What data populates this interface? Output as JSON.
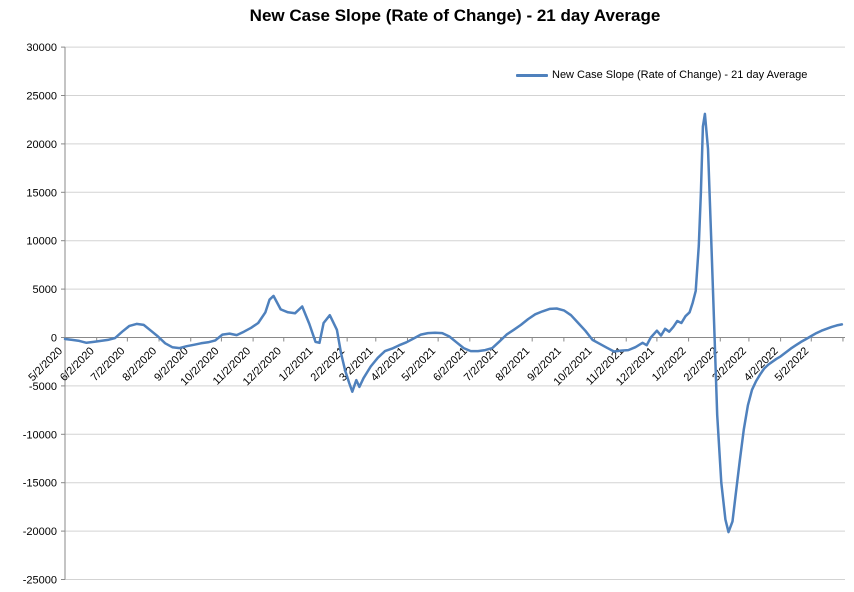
{
  "title": "New Case Slope (Rate of Change) - 21 day Average",
  "legend": {
    "label": "New Case Slope (Rate of Change) - 21 day Average",
    "line_color": "#4F81BD"
  },
  "colors": {
    "series": "#4F81BD",
    "gridline": "#D3D3D3",
    "axis": "#898989",
    "text": "#000000"
  },
  "chart_data": {
    "type": "line",
    "title": "New Case Slope (Rate of Change) - 21 day Average",
    "xlabel": "",
    "ylabel": "",
    "ylim": [
      -25000,
      30000
    ],
    "ytick_step": 5000,
    "grid": "horizontal",
    "legend_position": "top-right-inside",
    "y_tick_labels": [
      "30000",
      "25000",
      "20000",
      "15000",
      "10000",
      "5000",
      "0",
      "-5000",
      "-10000",
      "-15000",
      "-20000",
      "-25000"
    ],
    "x_tick_labels": [
      "5/2/2020",
      "6/2/2020",
      "7/2/2020",
      "8/2/2020",
      "9/2/2020",
      "10/2/2020",
      "11/2/2020",
      "12/2/2020",
      "1/2/2021",
      "2/2/2021",
      "3/2/2021",
      "4/2/2021",
      "5/2/2021",
      "6/2/2021",
      "7/2/2021",
      "8/2/2021",
      "9/2/2021",
      "10/2/2021",
      "11/2/2021",
      "12/2/2021",
      "1/2/2022",
      "2/2/2022",
      "3/2/2022",
      "4/2/2022",
      "5/2/2022"
    ],
    "series": [
      {
        "name": "New Case Slope (Rate of Change) - 21 day Average",
        "color": "#4F81BD",
        "points": [
          [
            "2020-05-02",
            -150
          ],
          [
            "2020-05-09",
            -250
          ],
          [
            "2020-05-16",
            -350
          ],
          [
            "2020-05-23",
            -550
          ],
          [
            "2020-05-30",
            -450
          ],
          [
            "2020-06-06",
            -350
          ],
          [
            "2020-06-13",
            -250
          ],
          [
            "2020-06-20",
            -50
          ],
          [
            "2020-06-27",
            600
          ],
          [
            "2020-07-04",
            1200
          ],
          [
            "2020-07-11",
            1400
          ],
          [
            "2020-07-18",
            1300
          ],
          [
            "2020-07-25",
            700
          ],
          [
            "2020-08-01",
            100
          ],
          [
            "2020-08-08",
            -600
          ],
          [
            "2020-08-15",
            -1000
          ],
          [
            "2020-08-22",
            -1100
          ],
          [
            "2020-08-29",
            -900
          ],
          [
            "2020-09-05",
            -750
          ],
          [
            "2020-09-12",
            -600
          ],
          [
            "2020-09-19",
            -500
          ],
          [
            "2020-09-26",
            -300
          ],
          [
            "2020-10-03",
            300
          ],
          [
            "2020-10-10",
            400
          ],
          [
            "2020-10-17",
            250
          ],
          [
            "2020-10-24",
            600
          ],
          [
            "2020-10-31",
            1000
          ],
          [
            "2020-11-07",
            1500
          ],
          [
            "2020-11-14",
            2600
          ],
          [
            "2020-11-18",
            3900
          ],
          [
            "2020-11-22",
            4300
          ],
          [
            "2020-11-29",
            2900
          ],
          [
            "2020-12-06",
            2600
          ],
          [
            "2020-12-13",
            2500
          ],
          [
            "2020-12-20",
            3200
          ],
          [
            "2020-12-27",
            1400
          ],
          [
            "2021-01-02",
            -450
          ],
          [
            "2021-01-06",
            -550
          ],
          [
            "2021-01-10",
            1500
          ],
          [
            "2021-01-16",
            2300
          ],
          [
            "2021-01-23",
            800
          ],
          [
            "2021-01-27",
            -1600
          ],
          [
            "2021-01-31",
            -3400
          ],
          [
            "2021-02-04",
            -4700
          ],
          [
            "2021-02-07",
            -5600
          ],
          [
            "2021-02-11",
            -4400
          ],
          [
            "2021-02-14",
            -5100
          ],
          [
            "2021-02-18",
            -4200
          ],
          [
            "2021-02-25",
            -3000
          ],
          [
            "2021-03-04",
            -2100
          ],
          [
            "2021-03-11",
            -1400
          ],
          [
            "2021-03-18",
            -1150
          ],
          [
            "2021-03-25",
            -800
          ],
          [
            "2021-04-01",
            -500
          ],
          [
            "2021-04-08",
            -100
          ],
          [
            "2021-04-15",
            300
          ],
          [
            "2021-04-22",
            450
          ],
          [
            "2021-04-29",
            500
          ],
          [
            "2021-05-06",
            450
          ],
          [
            "2021-05-13",
            100
          ],
          [
            "2021-05-20",
            -500
          ],
          [
            "2021-05-27",
            -1100
          ],
          [
            "2021-06-03",
            -1400
          ],
          [
            "2021-06-10",
            -1400
          ],
          [
            "2021-06-17",
            -1300
          ],
          [
            "2021-06-24",
            -1100
          ],
          [
            "2021-07-01",
            -400
          ],
          [
            "2021-07-08",
            300
          ],
          [
            "2021-07-15",
            800
          ],
          [
            "2021-07-22",
            1300
          ],
          [
            "2021-07-29",
            1900
          ],
          [
            "2021-08-05",
            2400
          ],
          [
            "2021-08-12",
            2700
          ],
          [
            "2021-08-19",
            2950
          ],
          [
            "2021-08-26",
            3000
          ],
          [
            "2021-09-02",
            2800
          ],
          [
            "2021-09-09",
            2300
          ],
          [
            "2021-09-16",
            1500
          ],
          [
            "2021-09-23",
            700
          ],
          [
            "2021-09-30",
            -250
          ],
          [
            "2021-10-07",
            -650
          ],
          [
            "2021-10-14",
            -1050
          ],
          [
            "2021-10-21",
            -1450
          ],
          [
            "2021-10-28",
            -1350
          ],
          [
            "2021-11-04",
            -1300
          ],
          [
            "2021-11-11",
            -1000
          ],
          [
            "2021-11-18",
            -550
          ],
          [
            "2021-11-22",
            -800
          ],
          [
            "2021-11-26",
            0
          ],
          [
            "2021-12-02",
            700
          ],
          [
            "2021-12-06",
            200
          ],
          [
            "2021-12-10",
            900
          ],
          [
            "2021-12-14",
            600
          ],
          [
            "2021-12-18",
            1100
          ],
          [
            "2021-12-22",
            1700
          ],
          [
            "2021-12-26",
            1500
          ],
          [
            "2021-12-30",
            2200
          ],
          [
            "2022-01-03",
            2600
          ],
          [
            "2022-01-06",
            3600
          ],
          [
            "2022-01-09",
            4800
          ],
          [
            "2022-01-12",
            9500
          ],
          [
            "2022-01-14",
            15000
          ],
          [
            "2022-01-16",
            21800
          ],
          [
            "2022-01-18",
            23100
          ],
          [
            "2022-01-21",
            19500
          ],
          [
            "2022-01-24",
            10500
          ],
          [
            "2022-01-27",
            1500
          ],
          [
            "2022-01-30",
            -8000
          ],
          [
            "2022-02-03",
            -15000
          ],
          [
            "2022-02-07",
            -18800
          ],
          [
            "2022-02-10",
            -20100
          ],
          [
            "2022-02-14",
            -19000
          ],
          [
            "2022-02-17",
            -16300
          ],
          [
            "2022-02-21",
            -12800
          ],
          [
            "2022-02-25",
            -9500
          ],
          [
            "2022-03-01",
            -7000
          ],
          [
            "2022-03-05",
            -5400
          ],
          [
            "2022-03-09",
            -4500
          ],
          [
            "2022-03-13",
            -3800
          ],
          [
            "2022-03-17",
            -3200
          ],
          [
            "2022-03-21",
            -2800
          ],
          [
            "2022-03-25",
            -2500
          ],
          [
            "2022-03-29",
            -2200
          ],
          [
            "2022-04-02",
            -1950
          ],
          [
            "2022-04-07",
            -1550
          ],
          [
            "2022-04-12",
            -1150
          ],
          [
            "2022-04-17",
            -800
          ],
          [
            "2022-04-22",
            -450
          ],
          [
            "2022-04-27",
            -150
          ],
          [
            "2022-05-02",
            150
          ],
          [
            "2022-05-07",
            450
          ],
          [
            "2022-05-12",
            700
          ],
          [
            "2022-05-17",
            900
          ],
          [
            "2022-05-22",
            1100
          ],
          [
            "2022-05-27",
            1250
          ],
          [
            "2022-06-01",
            1350
          ]
        ]
      }
    ]
  }
}
